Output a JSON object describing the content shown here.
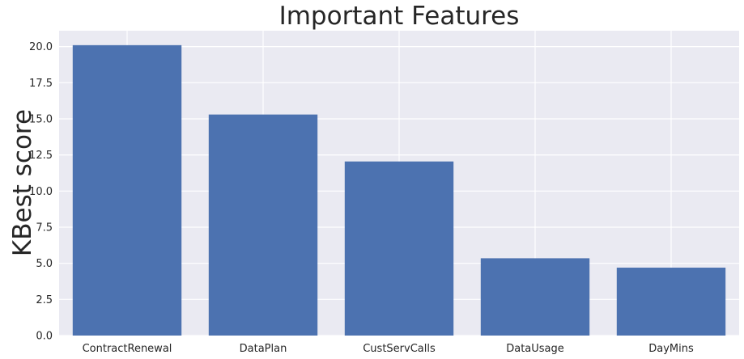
{
  "chart_data": {
    "type": "bar",
    "title": "Important Features",
    "xlabel": "",
    "ylabel": "KBest score",
    "categories": [
      "ContractRenewal",
      "DataPlan",
      "CustServCalls",
      "DataUsage",
      "DayMins"
    ],
    "values": [
      20.1,
      15.3,
      12.05,
      5.35,
      4.7
    ],
    "ylim": [
      0,
      21.1
    ],
    "yticks": [
      0.0,
      2.5,
      5.0,
      7.5,
      10.0,
      12.5,
      15.0,
      17.5,
      20.0
    ],
    "ytick_labels": [
      "0.0",
      "2.5",
      "5.0",
      "7.5",
      "10.0",
      "12.5",
      "15.0",
      "17.5",
      "20.0"
    ],
    "grid": true,
    "colors": {
      "bar": "#4c72b0",
      "plot_background": "#eaeaf2",
      "grid": "#ffffff"
    }
  }
}
